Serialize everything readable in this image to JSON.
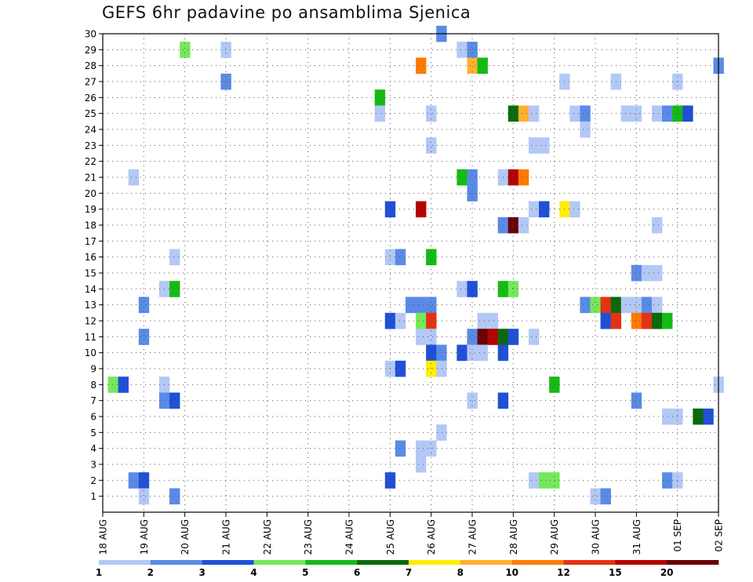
{
  "chart_data": {
    "type": "heatmap",
    "title": "GEFS 6hr padavine po ansamblima Sjenica",
    "ylim": [
      0,
      30
    ],
    "yticks": [
      1,
      2,
      3,
      4,
      5,
      6,
      7,
      8,
      9,
      10,
      11,
      12,
      13,
      14,
      15,
      16,
      17,
      18,
      19,
      20,
      21,
      22,
      23,
      24,
      25,
      26,
      27,
      28,
      29,
      30
    ],
    "x_start": "18 AUG",
    "x_step_hours": 6,
    "x_labels": [
      "18 AUG",
      "19 AUG",
      "20 AUG",
      "21 AUG",
      "22 AUG",
      "23 AUG",
      "24 AUG",
      "25 AUG",
      "26 AUG",
      "27 AUG",
      "28 AUG",
      "29 AUG",
      "30 AUG",
      "31 AUG",
      "01 SEP",
      "02 SEP"
    ],
    "grid": true,
    "colorbar": {
      "colors": [
        "#b3c8f5",
        "#5a8ae6",
        "#1f50d6",
        "#74e85a",
        "#14bb14",
        "#0a6a0a",
        "#ffee00",
        "#ffb030",
        "#ff7a00",
        "#e63214",
        "#b40000",
        "#6a0000"
      ],
      "labels": [
        "1",
        "2",
        "3",
        "4",
        "5",
        "6",
        "7",
        "8",
        "10",
        "12",
        "15",
        "20"
      ]
    },
    "cells": [
      {
        "member": 30,
        "step": 33,
        "level": 1
      },
      {
        "member": 29,
        "step": 8,
        "level": 3
      },
      {
        "member": 29,
        "step": 12,
        "level": 0
      },
      {
        "member": 29,
        "step": 35,
        "level": 0
      },
      {
        "member": 29,
        "step": 36,
        "level": 1
      },
      {
        "member": 28,
        "step": 31,
        "level": 8
      },
      {
        "member": 28,
        "step": 36,
        "level": 7
      },
      {
        "member": 28,
        "step": 37,
        "level": 4
      },
      {
        "member": 28,
        "step": 60,
        "level": 1
      },
      {
        "member": 27,
        "step": 12,
        "level": 1
      },
      {
        "member": 27,
        "step": 45,
        "level": 0
      },
      {
        "member": 27,
        "step": 50,
        "level": 0
      },
      {
        "member": 27,
        "step": 56,
        "level": 0
      },
      {
        "member": 26,
        "step": 27,
        "level": 4
      },
      {
        "member": 25,
        "step": 27,
        "level": 0
      },
      {
        "member": 25,
        "step": 32,
        "level": 0
      },
      {
        "member": 25,
        "step": 40,
        "level": 5
      },
      {
        "member": 25,
        "step": 41,
        "level": 7
      },
      {
        "member": 25,
        "step": 42,
        "level": 0
      },
      {
        "member": 25,
        "step": 46,
        "level": 0
      },
      {
        "member": 25,
        "step": 47,
        "level": 1
      },
      {
        "member": 25,
        "step": 51,
        "level": 0
      },
      {
        "member": 25,
        "step": 52,
        "level": 0
      },
      {
        "member": 25,
        "step": 54,
        "level": 0
      },
      {
        "member": 25,
        "step": 55,
        "level": 1
      },
      {
        "member": 25,
        "step": 56,
        "level": 4
      },
      {
        "member": 25,
        "step": 57,
        "level": 2
      },
      {
        "member": 24,
        "step": 47,
        "level": 0
      },
      {
        "member": 23,
        "step": 32,
        "level": 0
      },
      {
        "member": 23,
        "step": 42,
        "level": 0
      },
      {
        "member": 23,
        "step": 43,
        "level": 0
      },
      {
        "member": 21,
        "step": 3,
        "level": 0
      },
      {
        "member": 21,
        "step": 35,
        "level": 4
      },
      {
        "member": 21,
        "step": 36,
        "level": 1
      },
      {
        "member": 21,
        "step": 39,
        "level": 0
      },
      {
        "member": 21,
        "step": 40,
        "level": 10
      },
      {
        "member": 21,
        "step": 41,
        "level": 8
      },
      {
        "member": 20,
        "step": 36,
        "level": 1
      },
      {
        "member": 19,
        "step": 28,
        "level": 2
      },
      {
        "member": 19,
        "step": 31,
        "level": 10
      },
      {
        "member": 19,
        "step": 42,
        "level": 0
      },
      {
        "member": 19,
        "step": 43,
        "level": 2
      },
      {
        "member": 19,
        "step": 45,
        "level": 6
      },
      {
        "member": 19,
        "step": 46,
        "level": 0
      },
      {
        "member": 18,
        "step": 39,
        "level": 1
      },
      {
        "member": 18,
        "step": 40,
        "level": 11
      },
      {
        "member": 18,
        "step": 41,
        "level": 0
      },
      {
        "member": 18,
        "step": 54,
        "level": 0
      },
      {
        "member": 16,
        "step": 7,
        "level": 0
      },
      {
        "member": 16,
        "step": 28,
        "level": 0
      },
      {
        "member": 16,
        "step": 29,
        "level": 1
      },
      {
        "member": 16,
        "step": 32,
        "level": 4
      },
      {
        "member": 15,
        "step": 52,
        "level": 1
      },
      {
        "member": 15,
        "step": 53,
        "level": 0
      },
      {
        "member": 15,
        "step": 54,
        "level": 0
      },
      {
        "member": 14,
        "step": 6,
        "level": 0
      },
      {
        "member": 14,
        "step": 7,
        "level": 4
      },
      {
        "member": 14,
        "step": 35,
        "level": 0
      },
      {
        "member": 14,
        "step": 36,
        "level": 2
      },
      {
        "member": 14,
        "step": 39,
        "level": 4
      },
      {
        "member": 14,
        "step": 40,
        "level": 3
      },
      {
        "member": 13,
        "step": 4,
        "level": 1
      },
      {
        "member": 13,
        "step": 30,
        "level": 1
      },
      {
        "member": 13,
        "step": 31,
        "level": 1
      },
      {
        "member": 13,
        "step": 32,
        "level": 1
      },
      {
        "member": 13,
        "step": 47,
        "level": 1
      },
      {
        "member": 13,
        "step": 48,
        "level": 3
      },
      {
        "member": 13,
        "step": 49,
        "level": 9
      },
      {
        "member": 13,
        "step": 50,
        "level": 5
      },
      {
        "member": 13,
        "step": 51,
        "level": 0
      },
      {
        "member": 13,
        "step": 52,
        "level": 0
      },
      {
        "member": 13,
        "step": 53,
        "level": 1
      },
      {
        "member": 13,
        "step": 54,
        "level": 0
      },
      {
        "member": 12,
        "step": 28,
        "level": 2
      },
      {
        "member": 12,
        "step": 29,
        "level": 0
      },
      {
        "member": 12,
        "step": 31,
        "level": 3
      },
      {
        "member": 12,
        "step": 32,
        "level": 9
      },
      {
        "member": 12,
        "step": 37,
        "level": 0
      },
      {
        "member": 12,
        "step": 38,
        "level": 0
      },
      {
        "member": 12,
        "step": 49,
        "level": 2
      },
      {
        "member": 12,
        "step": 50,
        "level": 9
      },
      {
        "member": 12,
        "step": 52,
        "level": 8
      },
      {
        "member": 12,
        "step": 53,
        "level": 9
      },
      {
        "member": 12,
        "step": 54,
        "level": 5
      },
      {
        "member": 12,
        "step": 55,
        "level": 4
      },
      {
        "member": 11,
        "step": 4,
        "level": 1
      },
      {
        "member": 11,
        "step": 31,
        "level": 0
      },
      {
        "member": 11,
        "step": 32,
        "level": 0
      },
      {
        "member": 11,
        "step": 36,
        "level": 1
      },
      {
        "member": 11,
        "step": 37,
        "level": 11
      },
      {
        "member": 11,
        "step": 38,
        "level": 10
      },
      {
        "member": 11,
        "step": 39,
        "level": 5
      },
      {
        "member": 11,
        "step": 40,
        "level": 2
      },
      {
        "member": 11,
        "step": 42,
        "level": 0
      },
      {
        "member": 10,
        "step": 32,
        "level": 2
      },
      {
        "member": 10,
        "step": 33,
        "level": 1
      },
      {
        "member": 10,
        "step": 35,
        "level": 2
      },
      {
        "member": 10,
        "step": 36,
        "level": 0
      },
      {
        "member": 10,
        "step": 37,
        "level": 0
      },
      {
        "member": 10,
        "step": 39,
        "level": 2
      },
      {
        "member": 9,
        "step": 28,
        "level": 0
      },
      {
        "member": 9,
        "step": 29,
        "level": 2
      },
      {
        "member": 9,
        "step": 32,
        "level": 6
      },
      {
        "member": 9,
        "step": 33,
        "level": 0
      },
      {
        "member": 8,
        "step": 1,
        "level": 3
      },
      {
        "member": 8,
        "step": 2,
        "level": 2
      },
      {
        "member": 8,
        "step": 6,
        "level": 0
      },
      {
        "member": 8,
        "step": 44,
        "level": 4
      },
      {
        "member": 8,
        "step": 60,
        "level": 0
      },
      {
        "member": 7,
        "step": 6,
        "level": 1
      },
      {
        "member": 7,
        "step": 7,
        "level": 2
      },
      {
        "member": 7,
        "step": 36,
        "level": 0
      },
      {
        "member": 7,
        "step": 39,
        "level": 2
      },
      {
        "member": 7,
        "step": 52,
        "level": 1
      },
      {
        "member": 6,
        "step": 55,
        "level": 0
      },
      {
        "member": 6,
        "step": 56,
        "level": 0
      },
      {
        "member": 6,
        "step": 58,
        "level": 5
      },
      {
        "member": 6,
        "step": 59,
        "level": 2
      },
      {
        "member": 5,
        "step": 33,
        "level": 0
      },
      {
        "member": 4,
        "step": 29,
        "level": 1
      },
      {
        "member": 4,
        "step": 31,
        "level": 0
      },
      {
        "member": 4,
        "step": 32,
        "level": 0
      },
      {
        "member": 3,
        "step": 31,
        "level": 0
      },
      {
        "member": 2,
        "step": 3,
        "level": 1
      },
      {
        "member": 2,
        "step": 4,
        "level": 2
      },
      {
        "member": 2,
        "step": 28,
        "level": 2
      },
      {
        "member": 2,
        "step": 42,
        "level": 0
      },
      {
        "member": 2,
        "step": 43,
        "level": 3
      },
      {
        "member": 2,
        "step": 44,
        "level": 3
      },
      {
        "member": 2,
        "step": 55,
        "level": 1
      },
      {
        "member": 2,
        "step": 56,
        "level": 0
      },
      {
        "member": 1,
        "step": 4,
        "level": 0
      },
      {
        "member": 1,
        "step": 7,
        "level": 1
      },
      {
        "member": 1,
        "step": 48,
        "level": 0
      },
      {
        "member": 1,
        "step": 49,
        "level": 1
      }
    ]
  }
}
